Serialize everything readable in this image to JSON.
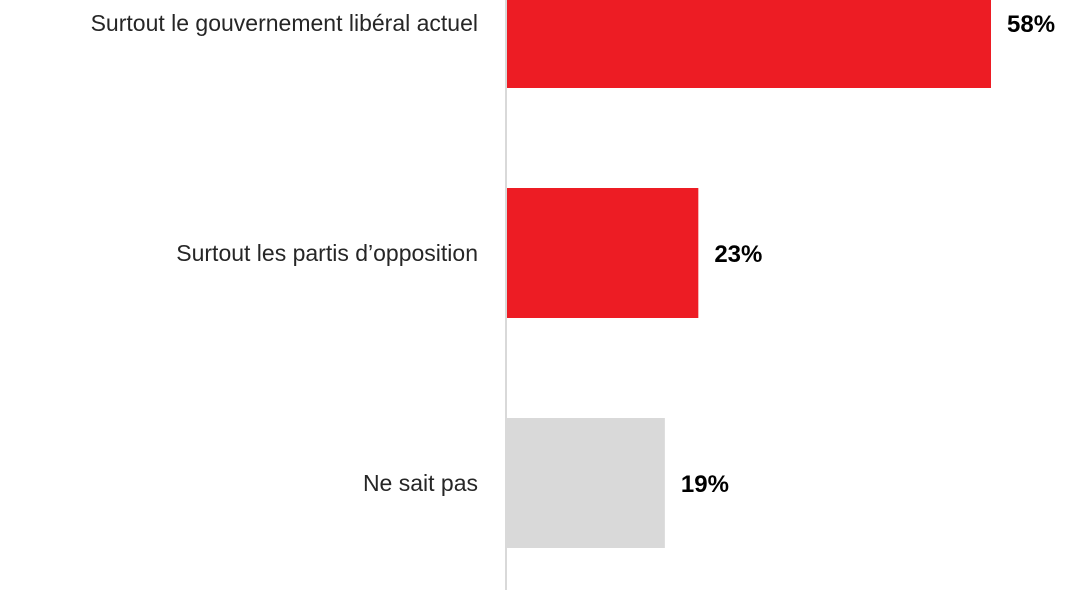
{
  "chart_data": {
    "type": "bar",
    "orientation": "horizontal",
    "categories": [
      "Surtout le gouvernement libéral actuel",
      "Surtout les partis d’opposition",
      "Ne sait pas"
    ],
    "values": [
      58,
      23,
      19
    ],
    "value_labels": [
      "58%",
      "23%",
      "19%"
    ],
    "colors": [
      "#ED1C24",
      "#ED1C24",
      "#D9D9D9"
    ],
    "axis_color": "#D9D9D9",
    "xlim": [
      0,
      58
    ],
    "grid": false,
    "legend": "none"
  }
}
